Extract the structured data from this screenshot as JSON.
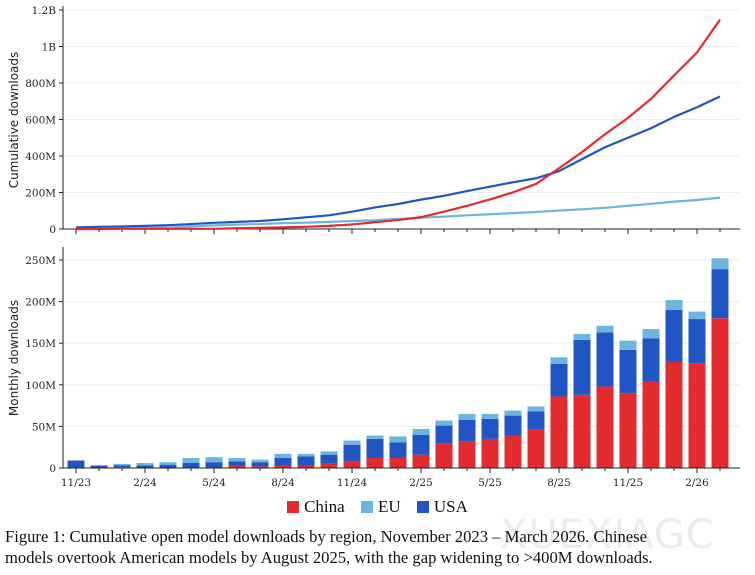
{
  "colors": {
    "China": "#e32b2f",
    "EU": "#6bb6dc",
    "USA": "#2255c4"
  },
  "chart_data": [
    {
      "type": "line",
      "ylabel": "Cumulative downloads",
      "ylim": [
        0,
        1200000000
      ],
      "yticks": [
        "0",
        "200M",
        "400M",
        "600M",
        "800M",
        "1B",
        "1.2B"
      ],
      "ytick_values_millions": [
        0,
        200,
        400,
        600,
        800,
        1000,
        1200
      ],
      "grid": true,
      "units": "millions",
      "x": [
        "11/23",
        "12/23",
        "1/24",
        "2/24",
        "3/24",
        "4/24",
        "5/24",
        "6/24",
        "7/24",
        "8/24",
        "9/24",
        "10/24",
        "11/24",
        "12/24",
        "1/25",
        "2/25",
        "3/25",
        "4/25",
        "5/25",
        "6/25",
        "7/25",
        "8/25",
        "9/25",
        "10/25",
        "11/25",
        "12/25",
        "1/26",
        "2/26",
        "3/26"
      ],
      "series": [
        {
          "name": "China",
          "values": [
            0,
            0,
            1,
            1,
            1,
            1,
            1,
            4,
            6,
            9,
            12,
            17,
            25,
            37,
            49,
            65,
            95,
            127,
            162,
            201,
            247,
            333,
            421,
            519,
            609,
            713,
            841,
            967,
            1147
          ]
        },
        {
          "name": "EU",
          "values": [
            0,
            0,
            2,
            5,
            8,
            14,
            20,
            24,
            27,
            32,
            35,
            39,
            44,
            48,
            55,
            62,
            68,
            75,
            81,
            87,
            93,
            101,
            108,
            116,
            127,
            138,
            150,
            159,
            172
          ]
        },
        {
          "name": "USA",
          "values": [
            9,
            12,
            14,
            17,
            21,
            27,
            34,
            39,
            44,
            53,
            64,
            75,
            95,
            118,
            137,
            161,
            182,
            208,
            232,
            256,
            278,
            317,
            383,
            448,
            500,
            552,
            614,
            667,
            726
          ]
        }
      ]
    },
    {
      "type": "bar",
      "stacked": true,
      "ylabel": "Monthly downloads",
      "ylim": [
        0,
        265000000
      ],
      "yticks": [
        "0",
        "50M",
        "100M",
        "150M",
        "200M",
        "250M"
      ],
      "ytick_values_millions": [
        0,
        50,
        100,
        150,
        200,
        250
      ],
      "grid": true,
      "units": "millions",
      "xtick_labels": [
        "11/23",
        "2/24",
        "5/24",
        "8/24",
        "11/24",
        "2/25",
        "5/25",
        "8/25",
        "11/25",
        "2/26"
      ],
      "categories": [
        "11/23",
        "12/23",
        "1/24",
        "2/24",
        "3/24",
        "4/24",
        "5/24",
        "6/24",
        "7/24",
        "8/24",
        "9/24",
        "10/24",
        "11/24",
        "12/24",
        "1/25",
        "2/25",
        "3/25",
        "4/25",
        "5/25",
        "6/25",
        "7/25",
        "8/25",
        "9/25",
        "10/25",
        "11/25",
        "12/25",
        "1/26",
        "2/26",
        "3/26"
      ],
      "series": [
        {
          "name": "China",
          "values": [
            0,
            0,
            1,
            0,
            0,
            0,
            0,
            3,
            2,
            3,
            3,
            5,
            8,
            12,
            12,
            16,
            30,
            32,
            35,
            39,
            46,
            86,
            88,
            98,
            90,
            104,
            128,
            126,
            180
          ]
        },
        {
          "name": "USA",
          "values": [
            9,
            3,
            2,
            3,
            4,
            6,
            7,
            5,
            5,
            9,
            11,
            11,
            20,
            23,
            19,
            24,
            21,
            26,
            24,
            24,
            22,
            39,
            66,
            65,
            52,
            52,
            62,
            53,
            59
          ]
        },
        {
          "name": "EU",
          "values": [
            0,
            0,
            2,
            3,
            3,
            6,
            6,
            4,
            3,
            5,
            3,
            4,
            5,
            4,
            7,
            7,
            6,
            7,
            6,
            6,
            6,
            8,
            7,
            8,
            11,
            11,
            12,
            9,
            13
          ]
        }
      ]
    }
  ],
  "legend": [
    {
      "label": "China",
      "color": "#e32b2f"
    },
    {
      "label": "EU",
      "color": "#6bb6dc"
    },
    {
      "label": "USA",
      "color": "#2255c4"
    }
  ],
  "caption": {
    "line1": "Figure 1: Cumulative open model downloads by region, November 2023 – March 2026. Chinese",
    "line2": "models overtook American models by August 2025, with the gap widening to >400M downloads."
  },
  "watermark": "XUEXIAGC"
}
